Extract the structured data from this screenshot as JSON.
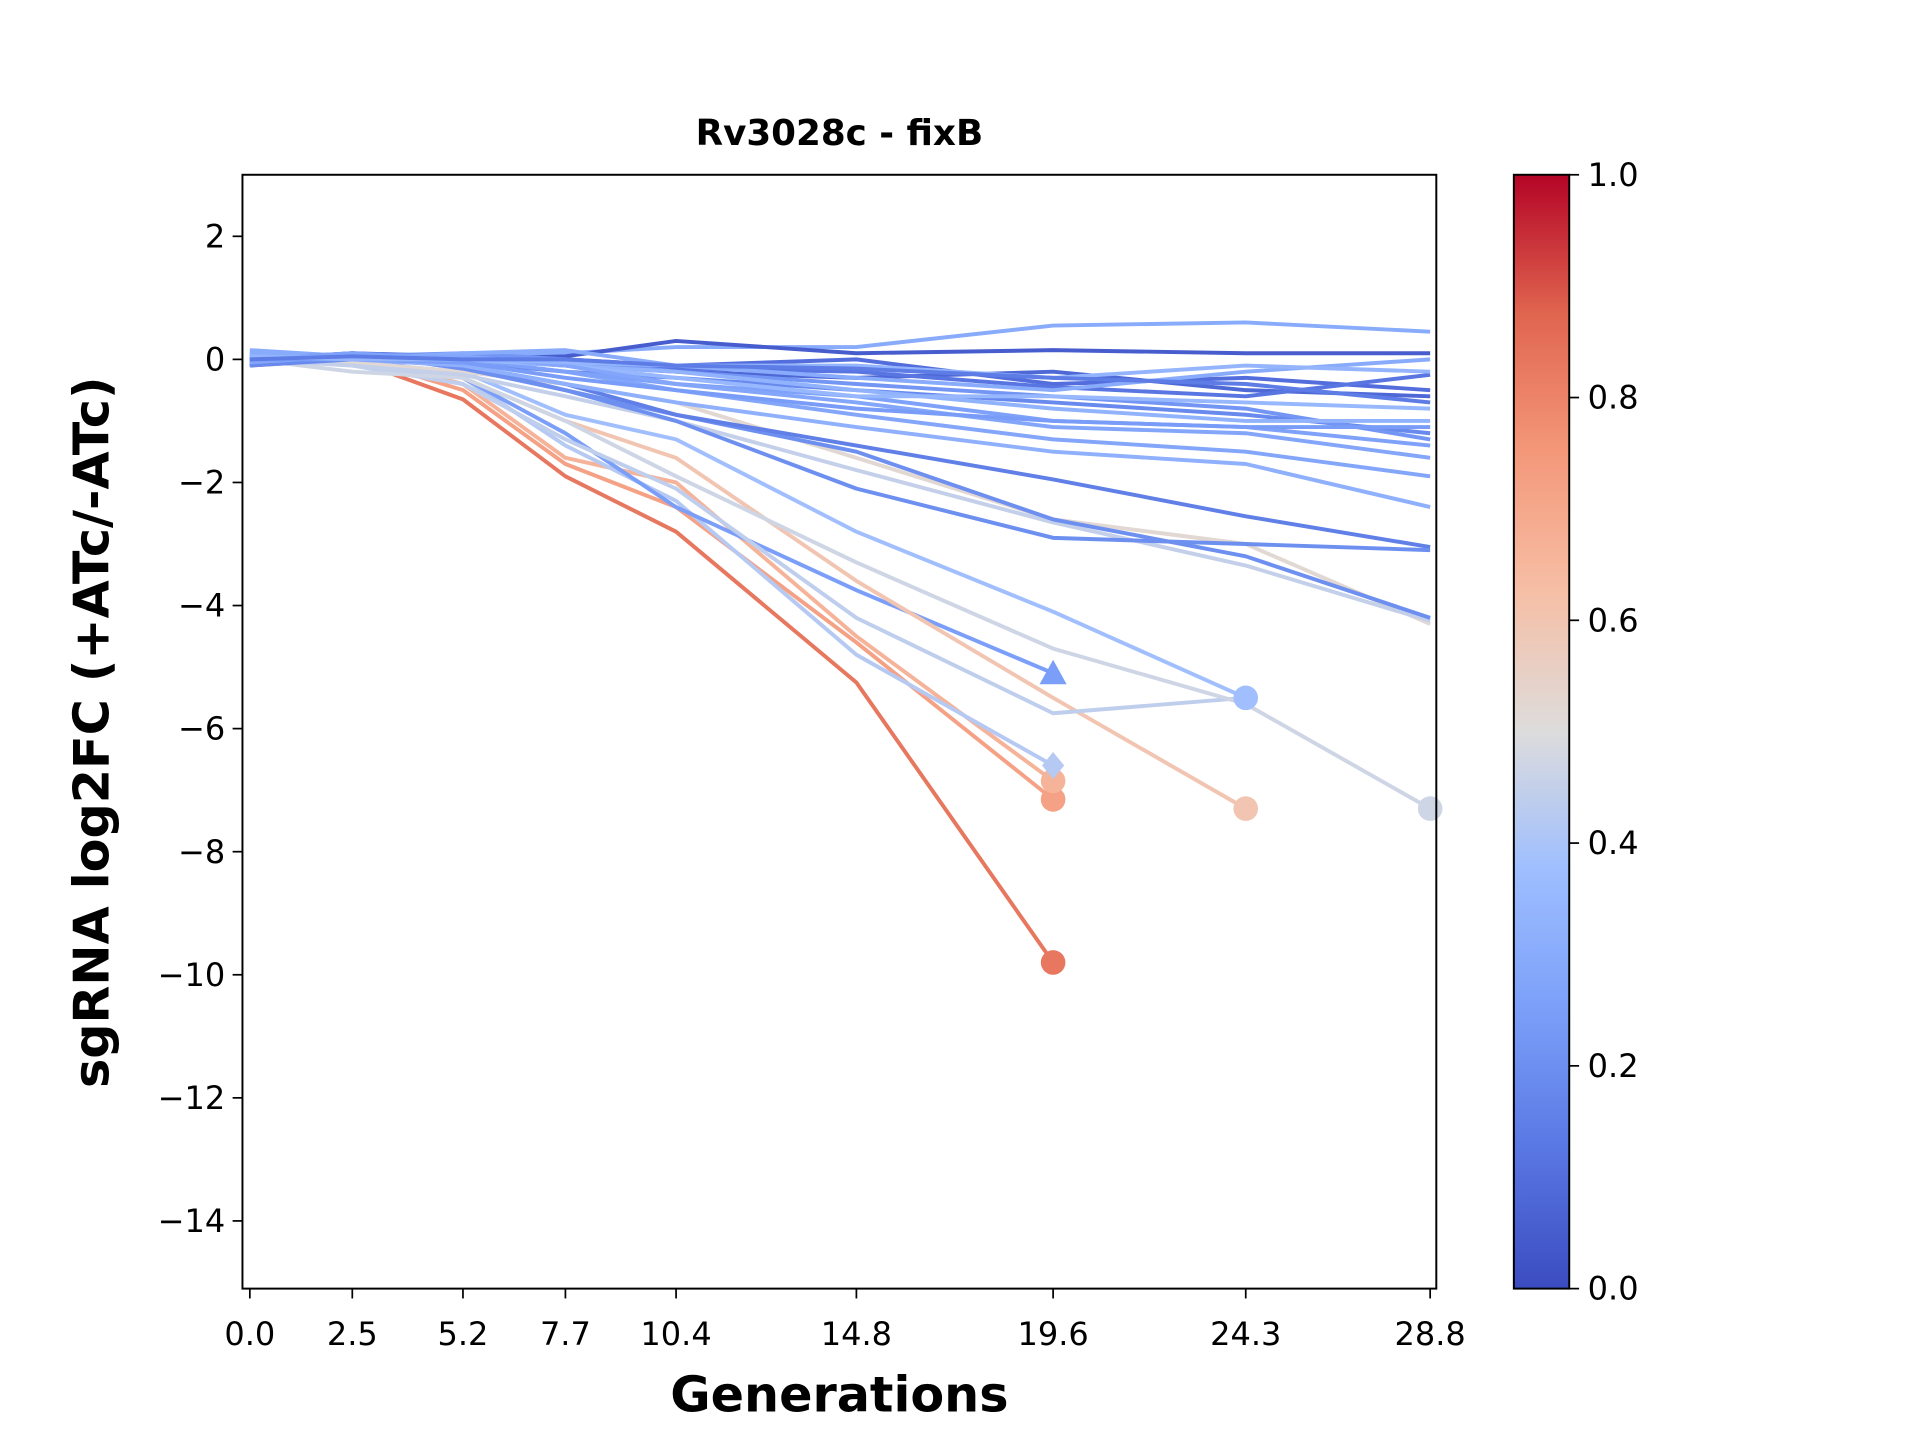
{
  "chart_data": {
    "type": "line",
    "title": "Rv3028c - fixB",
    "xlabel": "Generations",
    "ylabel": "sgRNA log2FC (+ATc/-ATc)",
    "x": [
      0.0,
      2.5,
      5.2,
      7.7,
      10.4,
      14.8,
      19.6,
      24.3,
      28.8
    ],
    "x_tick_labels": [
      "0.0",
      "2.5",
      "5.2",
      "7.7",
      "10.4",
      "14.8",
      "19.6",
      "24.3",
      "28.8"
    ],
    "xlim": [
      -0.18,
      28.95
    ],
    "ylim": [
      -15.1,
      3
    ],
    "y_ticks": [
      2,
      0,
      -2,
      -4,
      -6,
      -8,
      -10,
      -12,
      -14
    ],
    "y_tick_labels": [
      "2",
      "0",
      "−2",
      "−4",
      "−6",
      "−8",
      "−10",
      "−12",
      "−14"
    ],
    "grid": false,
    "colorbar": {
      "cmap": "coolwarm",
      "range": [
        0.0,
        1.0
      ],
      "ticks": [
        0.0,
        0.2,
        0.4,
        0.6,
        0.8,
        1.0
      ],
      "tick_labels": [
        "0.0",
        "0.2",
        "0.4",
        "0.6",
        "0.8",
        "1.0"
      ]
    },
    "series": [
      {
        "c": 0.83,
        "marker": "circle",
        "values": [
          -0.1,
          0.0,
          -0.65,
          -1.9,
          -2.8,
          -5.25,
          -9.8,
          null,
          null
        ]
      },
      {
        "c": 0.72,
        "marker": "circle",
        "values": [
          -0.05,
          0.05,
          -0.5,
          -1.7,
          -2.4,
          -4.6,
          -7.15,
          null,
          null
        ]
      },
      {
        "c": 0.66,
        "marker": "circle",
        "values": [
          0.0,
          0.05,
          -0.4,
          -1.6,
          -2.0,
          -4.5,
          -6.85,
          null,
          null
        ]
      },
      {
        "c": 0.42,
        "marker": "diamond",
        "values": [
          0.05,
          -0.1,
          -0.3,
          -1.4,
          -2.3,
          -4.8,
          -6.6,
          null,
          null
        ]
      },
      {
        "c": 0.25,
        "marker": "triangle",
        "values": [
          0.0,
          0.05,
          -0.3,
          -1.2,
          -2.4,
          -3.75,
          -5.1,
          null,
          null
        ]
      },
      {
        "c": 0.6,
        "marker": "circle",
        "values": [
          0.05,
          0.0,
          -0.3,
          -1.0,
          -1.6,
          -3.6,
          -5.5,
          -7.3,
          null
        ]
      },
      {
        "c": 0.38,
        "marker": "circle",
        "values": [
          0.1,
          -0.05,
          -0.2,
          -0.9,
          -1.3,
          -2.8,
          -4.1,
          -5.5,
          null
        ]
      },
      {
        "c": 0.44,
        "marker": "none",
        "values": [
          0.0,
          -0.1,
          -0.4,
          -1.3,
          -2.1,
          -4.2,
          -5.75,
          -5.5,
          null
        ]
      },
      {
        "c": 0.47,
        "marker": "circle",
        "values": [
          0.0,
          -0.2,
          -0.3,
          -1.0,
          -1.9,
          -3.3,
          -4.7,
          -5.6,
          -7.3
        ]
      },
      {
        "c": 0.52,
        "marker": "none",
        "values": [
          0.05,
          -0.05,
          -0.2,
          -0.4,
          -0.7,
          -1.6,
          -2.6,
          -3.0,
          -4.3
        ]
      },
      {
        "c": 0.45,
        "marker": "none",
        "values": [
          0.0,
          -0.1,
          -0.25,
          -0.6,
          -1.0,
          -1.8,
          -2.65,
          -3.35,
          -4.25
        ]
      },
      {
        "c": 0.2,
        "marker": "none",
        "values": [
          -0.1,
          0.05,
          -0.1,
          -0.5,
          -0.9,
          -1.5,
          -2.6,
          -3.2,
          -4.2
        ]
      },
      {
        "c": 0.15,
        "marker": "none",
        "values": [
          -0.05,
          0.1,
          -0.1,
          -0.4,
          -0.9,
          -1.4,
          -1.95,
          -2.55,
          -3.05
        ]
      },
      {
        "c": 0.2,
        "marker": "none",
        "values": [
          0.0,
          0.1,
          -0.15,
          -0.5,
          -1.0,
          -2.1,
          -2.9,
          -3.0,
          -3.1
        ]
      },
      {
        "c": 0.32,
        "marker": "none",
        "values": [
          0.1,
          0.0,
          -0.1,
          -0.4,
          -0.7,
          -1.1,
          -1.5,
          -1.7,
          -2.4
        ]
      },
      {
        "c": 0.28,
        "marker": "none",
        "values": [
          0.0,
          0.05,
          0.0,
          -0.2,
          -0.5,
          -0.9,
          -1.3,
          -1.5,
          -1.9
        ]
      },
      {
        "c": 0.3,
        "marker": "none",
        "values": [
          0.15,
          0.05,
          0.05,
          0.1,
          0.2,
          0.2,
          0.55,
          0.6,
          0.45
        ]
      },
      {
        "c": 0.05,
        "marker": "none",
        "values": [
          -0.1,
          0.1,
          0.0,
          0.05,
          0.3,
          0.1,
          0.15,
          0.1,
          0.1
        ]
      },
      {
        "c": 0.08,
        "marker": "none",
        "values": [
          0.0,
          0.05,
          0.0,
          -0.1,
          -0.2,
          -0.3,
          -0.2,
          -0.5,
          -0.6
        ]
      },
      {
        "c": 0.1,
        "marker": "none",
        "values": [
          -0.05,
          0.0,
          0.05,
          0.0,
          -0.1,
          0.0,
          -0.4,
          -0.3,
          -0.5
        ]
      },
      {
        "c": 0.12,
        "marker": "none",
        "values": [
          0.0,
          0.1,
          0.05,
          -0.05,
          -0.15,
          -0.2,
          -0.45,
          -0.6,
          -0.25
        ]
      },
      {
        "c": 0.18,
        "marker": "none",
        "values": [
          -0.1,
          0.0,
          -0.05,
          -0.2,
          -0.3,
          -0.5,
          -0.7,
          -0.9,
          -1.2
        ]
      },
      {
        "c": 0.22,
        "marker": "none",
        "values": [
          0.05,
          0.05,
          0.1,
          0.0,
          -0.2,
          -0.4,
          -0.6,
          -0.8,
          -1.3
        ]
      },
      {
        "c": 0.26,
        "marker": "none",
        "values": [
          0.0,
          0.1,
          0.0,
          -0.2,
          -0.4,
          -0.6,
          -1.0,
          -1.1,
          -1.4
        ]
      },
      {
        "c": 0.3,
        "marker": "none",
        "values": [
          0.1,
          0.0,
          0.1,
          0.15,
          -0.1,
          -0.3,
          -0.5,
          -0.2,
          0.0
        ]
      },
      {
        "c": 0.33,
        "marker": "none",
        "values": [
          0.0,
          0.05,
          0.0,
          -0.1,
          -0.2,
          -0.5,
          -0.8,
          -1.0,
          -1.0
        ]
      },
      {
        "c": 0.35,
        "marker": "none",
        "values": [
          0.05,
          0.0,
          0.0,
          -0.1,
          -0.3,
          -0.6,
          -0.6,
          -0.7,
          -0.8
        ]
      },
      {
        "c": 0.28,
        "marker": "none",
        "values": [
          -0.05,
          0.05,
          0.05,
          -0.1,
          -0.4,
          -0.7,
          -1.1,
          -1.2,
          -1.6
        ]
      },
      {
        "c": 0.24,
        "marker": "none",
        "values": [
          0.0,
          0.0,
          -0.05,
          -0.3,
          -0.5,
          -0.8,
          -1.0,
          -1.1,
          -1.1
        ]
      },
      {
        "c": 0.34,
        "marker": "none",
        "values": [
          0.05,
          0.0,
          0.0,
          -0.05,
          -0.1,
          -0.1,
          -0.3,
          -0.1,
          -0.2
        ]
      },
      {
        "c": 0.14,
        "marker": "none",
        "values": [
          0.0,
          0.05,
          0.0,
          0.0,
          -0.1,
          -0.15,
          -0.3,
          -0.4,
          -0.7
        ]
      }
    ]
  }
}
